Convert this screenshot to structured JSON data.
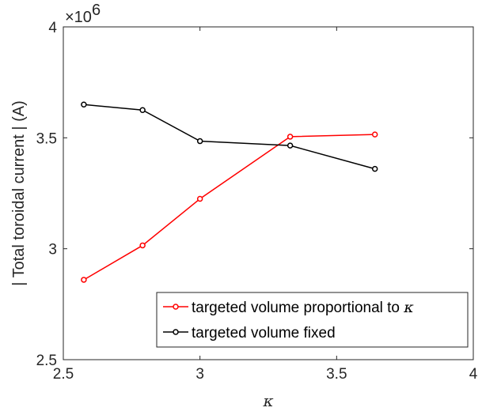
{
  "chart_data": {
    "type": "line",
    "xlabel": "κ",
    "ylabel": "| Total toroidal current | (A)",
    "exponent_label": "×10",
    "exponent_power": "6",
    "xlim": [
      2.5,
      4
    ],
    "ylim": [
      2.5,
      4
    ],
    "xticks": [
      2.5,
      3,
      3.5,
      4
    ],
    "xtick_labels": [
      "2.5",
      "3",
      "3.5",
      "4"
    ],
    "yticks": [
      2.5,
      3,
      3.5,
      4
    ],
    "ytick_labels": [
      "2.5",
      "3",
      "3.5",
      "4"
    ],
    "y_scale_factor": 1000000,
    "grid": false,
    "legend_position": "bottom-right",
    "series": [
      {
        "name": "targeted volume proportional to κ",
        "legend_text": "targeted volume proportional to ",
        "legend_symbol": "κ",
        "color": "#ff0000",
        "x": [
          2.575,
          2.79,
          3.0,
          3.33,
          3.64
        ],
        "y": [
          2.86,
          3.015,
          3.225,
          3.505,
          3.515
        ]
      },
      {
        "name": "targeted volume fixed",
        "legend_text": "targeted volume fixed",
        "legend_symbol": "",
        "color": "#000000",
        "x": [
          2.575,
          2.79,
          3.0,
          3.33,
          3.64
        ],
        "y": [
          3.65,
          3.625,
          3.485,
          3.465,
          3.36
        ]
      }
    ]
  }
}
